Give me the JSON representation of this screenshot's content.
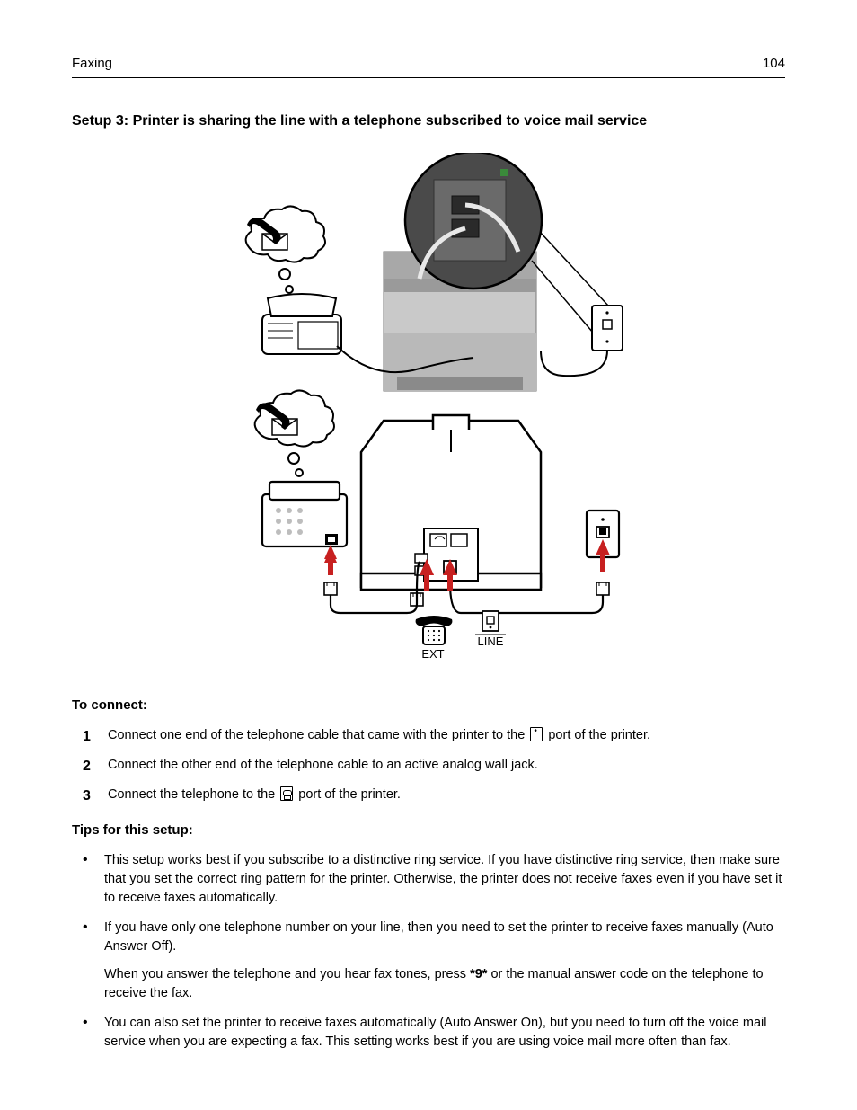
{
  "header": {
    "section": "Faxing",
    "page": "104"
  },
  "title": "Setup 3: Printer is sharing the line with a telephone subscribed to voice mail service",
  "diagram": {
    "labels": {
      "ext": "EXT",
      "line": "LINE"
    },
    "colors": {
      "arrow": "#c72020",
      "stroke": "#000000",
      "printer_body": "#d8d8d8",
      "printer_dark": "#8a8a8a",
      "printer_accent": "#6b6b6b",
      "wall": "#ffffff"
    }
  },
  "connect": {
    "heading": "To connect:",
    "steps": [
      {
        "n": "1",
        "before": "Connect one end of the telephone cable that came with the printer to the ",
        "icon": "line-port",
        "after": " port of the printer."
      },
      {
        "n": "2",
        "before": "Connect the other end of the telephone cable to an active analog wall jack.",
        "icon": null,
        "after": ""
      },
      {
        "n": "3",
        "before": "Connect the telephone to the ",
        "icon": "ext-port",
        "after": " port of the printer."
      }
    ]
  },
  "tips": {
    "heading": "Tips for this setup:",
    "items": [
      {
        "paras": [
          "This setup works best if you subscribe to a distinctive ring service. If you have distinctive ring service, then make sure that you set the correct ring pattern for the printer. Otherwise, the printer does not receive faxes even if you have set it to receive faxes automatically."
        ]
      },
      {
        "paras": [
          "If you have only one telephone number on your line, then you need to set the printer to receive faxes manually (Auto Answer Off).",
          "When you answer the telephone and you hear fax tones, press <b>*9*</b> or the manual answer code on the telephone to receive the fax."
        ]
      },
      {
        "paras": [
          "You can also set the printer to receive faxes automatically (Auto Answer On), but you need to turn off the voice mail service when you are expecting a fax. This setting works best if you are using voice mail more often than fax."
        ]
      }
    ]
  }
}
